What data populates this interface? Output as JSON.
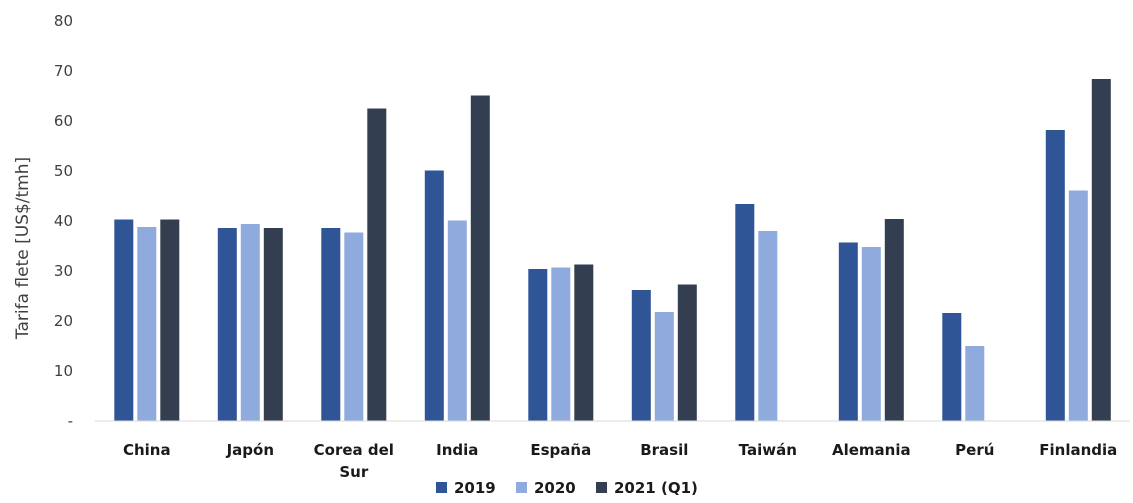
{
  "chart_data": {
    "type": "bar",
    "title": "",
    "ylabel": "Tarifa flete [US$/tmh]",
    "xlabel": "",
    "ylim": [
      0,
      80
    ],
    "yticks": [
      "-",
      "10",
      "20",
      "30",
      "40",
      "50",
      "60",
      "70",
      "80"
    ],
    "grid": false,
    "legend_position": "bottom",
    "categories": [
      "China",
      "Japón",
      "Corea del Sur",
      "India",
      "España",
      "Brasil",
      "Taiwán",
      "Alemania",
      "Perú",
      "Finlandia"
    ],
    "series": [
      {
        "name": "2019",
        "color": "#2f5597",
        "values": [
          40.3,
          38.6,
          38.6,
          50.1,
          30.4,
          26.2,
          43.4,
          35.7,
          21.6,
          58.2
        ]
      },
      {
        "name": "2020",
        "color": "#8faadc",
        "values": [
          38.8,
          39.4,
          37.7,
          40.1,
          30.7,
          21.8,
          38.0,
          34.8,
          15.0,
          46.1
        ]
      },
      {
        "name": "2021 (Q1)",
        "color": "#333f50",
        "values": [
          40.3,
          38.6,
          62.5,
          65.1,
          31.3,
          27.3,
          null,
          40.4,
          null,
          68.4
        ]
      }
    ]
  }
}
